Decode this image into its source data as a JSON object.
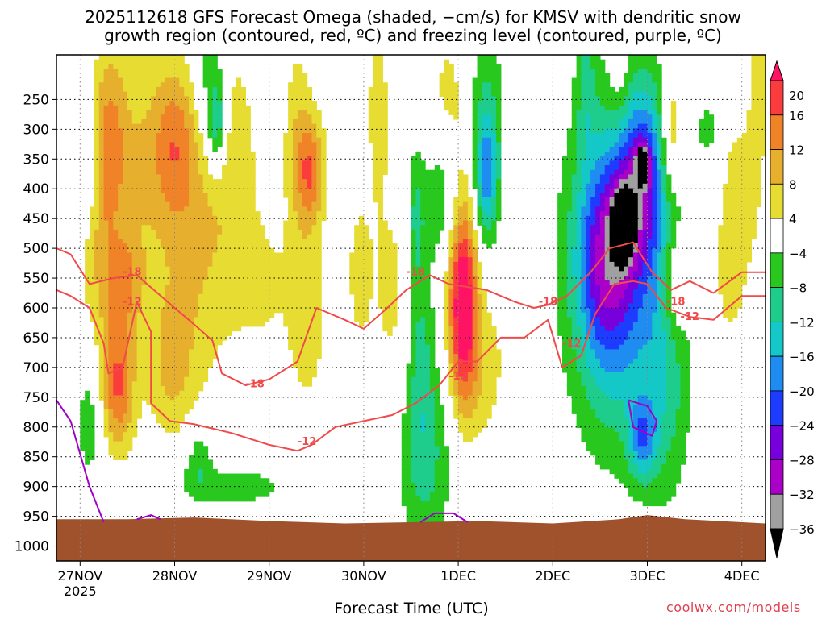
{
  "title_line1": "2025112618 GFS Forecast Omega (shaded, −cm/s) for KMSV with dendritic snow",
  "title_line2": "growth region (contoured, red, ºC) and freezing level (contoured, purple, ºC)",
  "xlabel": "Forecast Time (UTC)",
  "credit": "coolwx.com/models",
  "colors": {
    "ground": "#a0522d",
    "dgz_contour": "#f04a4a",
    "freezing_contour": "#a000c8",
    "grid": "#888888"
  },
  "colorbar": {
    "labels": [
      "20",
      "16",
      "12",
      "8",
      "4",
      "−4",
      "−8",
      "−12",
      "−16",
      "−20",
      "−24",
      "−28",
      "−32",
      "−36"
    ],
    "colors": [
      "#ff1464",
      "#fa3c3c",
      "#f08228",
      "#e6af2d",
      "#e6dc32",
      "#ffffff",
      "#28c81e",
      "#1ecc8c",
      "#14c8c8",
      "#1e8cf0",
      "#1e3cff",
      "#7800dc",
      "#aa00c8",
      "#a0a0a0",
      "#000000"
    ]
  },
  "chart_data": {
    "type": "heatmap",
    "x_ticks": [
      "27NOV",
      "28NOV",
      "29NOV",
      "30NOV",
      "1DEC",
      "2DEC",
      "3DEC",
      "4DEC"
    ],
    "x_year_label": "2025",
    "y_ticks": [
      "250",
      "300",
      "350",
      "400",
      "450",
      "500",
      "550",
      "600",
      "650",
      "700",
      "750",
      "800",
      "850",
      "900",
      "950",
      "1000"
    ],
    "y_levels": [
      250,
      300,
      350,
      400,
      450,
      500,
      550,
      600,
      650,
      700,
      750,
      800,
      850,
      900,
      950,
      1000
    ],
    "x_range_days": [
      -0.25,
      7.25
    ],
    "y_range_hpa": [
      175,
      1025
    ],
    "contour_labels": [
      {
        "text": "-18",
        "x": 0.55,
        "y": 540
      },
      {
        "text": "-12",
        "x": 0.55,
        "y": 590
      },
      {
        "text": "-18",
        "x": 1.85,
        "y": 728
      },
      {
        "text": "-12",
        "x": 2.4,
        "y": 825
      },
      {
        "text": "-18",
        "x": 3.55,
        "y": 540
      },
      {
        "text": "-12",
        "x": 4.0,
        "y": 715
      },
      {
        "text": "-18",
        "x": 4.95,
        "y": 590
      },
      {
        "text": "-12",
        "x": 5.2,
        "y": 660
      },
      {
        "text": "-18",
        "x": 6.3,
        "y": 590
      },
      {
        "text": "-12",
        "x": 6.45,
        "y": 615
      }
    ],
    "omega_blobs": [
      {
        "x": 0.3,
        "p": 320,
        "rx": 0.18,
        "rp": 160,
        "v": 10
      },
      {
        "x": 0.55,
        "p": 370,
        "rx": 0.35,
        "rp": 230,
        "v": 7
      },
      {
        "x": 0.4,
        "p": 730,
        "rx": 0.18,
        "rp": 110,
        "v": 16
      },
      {
        "x": 0.45,
        "p": 560,
        "rx": 0.2,
        "rp": 80,
        "v": 10
      },
      {
        "x": 0.15,
        "p": 520,
        "rx": 0.2,
        "rp": 200,
        "v": 5
      },
      {
        "x": 1.0,
        "p": 320,
        "rx": 0.25,
        "rp": 130,
        "v": 11
      },
      {
        "x": 1.2,
        "p": 500,
        "rx": 0.4,
        "rp": 250,
        "v": 8
      },
      {
        "x": 0.95,
        "p": 700,
        "rx": 0.25,
        "rp": 120,
        "v": 7
      },
      {
        "x": 1.6,
        "p": 330,
        "rx": 0.3,
        "rp": 180,
        "v": 6
      },
      {
        "x": 1.9,
        "p": 560,
        "rx": 0.35,
        "rp": 120,
        "v": 5
      },
      {
        "x": 2.3,
        "p": 320,
        "rx": 0.15,
        "rp": 170,
        "v": 7
      },
      {
        "x": 2.45,
        "p": 370,
        "rx": 0.15,
        "rp": 90,
        "v": 14
      },
      {
        "x": 2.4,
        "p": 620,
        "rx": 0.2,
        "rp": 150,
        "v": 7
      },
      {
        "x": 2.95,
        "p": 540,
        "rx": 0.12,
        "rp": 120,
        "v": 6
      },
      {
        "x": 3.15,
        "p": 260,
        "rx": 0.12,
        "rp": 160,
        "v": 6
      },
      {
        "x": 3.3,
        "p": 580,
        "rx": 0.25,
        "rp": 200,
        "v": 5
      },
      {
        "x": 3.85,
        "p": 300,
        "rx": 0.2,
        "rp": 160,
        "v": 6
      },
      {
        "x": 4.05,
        "p": 600,
        "rx": 0.14,
        "rp": 160,
        "v": 20
      },
      {
        "x": 4.05,
        "p": 450,
        "rx": 0.2,
        "rp": 260,
        "v": 8
      },
      {
        "x": 4.25,
        "p": 700,
        "rx": 0.25,
        "rp": 130,
        "v": 6
      },
      {
        "x": 4.6,
        "p": 360,
        "rx": 0.25,
        "rp": 250,
        "v": 5
      },
      {
        "x": 5.7,
        "p": 220,
        "rx": 0.12,
        "rp": 90,
        "v": 6
      },
      {
        "x": 6.25,
        "p": 310,
        "rx": 0.12,
        "rp": 110,
        "v": 13
      },
      {
        "x": 6.3,
        "p": 560,
        "rx": 0.15,
        "rp": 100,
        "v": 10
      },
      {
        "x": 7.0,
        "p": 380,
        "rx": 0.25,
        "rp": 220,
        "v": 6
      },
      {
        "x": 6.85,
        "p": 540,
        "rx": 0.15,
        "rp": 120,
        "v": 5
      },
      {
        "x": 7.15,
        "p": 210,
        "rx": 0.12,
        "rp": 150,
        "v": 5
      },
      {
        "x": 0.1,
        "p": 780,
        "rx": 0.15,
        "rp": 120,
        "v": -7
      },
      {
        "x": 0.1,
        "p": 360,
        "rx": 0.1,
        "rp": 120,
        "v": -6
      },
      {
        "x": 1.35,
        "p": 220,
        "rx": 0.18,
        "rp": 150,
        "v": -8
      },
      {
        "x": 1.45,
        "p": 290,
        "rx": 0.1,
        "rp": 80,
        "v": -13
      },
      {
        "x": 1.6,
        "p": 900,
        "rx": 0.7,
        "rp": 40,
        "v": -6
      },
      {
        "x": 1.25,
        "p": 850,
        "rx": 0.15,
        "rp": 60,
        "v": -7
      },
      {
        "x": 3.65,
        "p": 850,
        "rx": 0.3,
        "rp": 160,
        "v": -9
      },
      {
        "x": 3.55,
        "p": 440,
        "rx": 0.1,
        "rp": 120,
        "v": -8
      },
      {
        "x": 3.85,
        "p": 400,
        "rx": 0.2,
        "rp": 120,
        "v": -12
      },
      {
        "x": 3.6,
        "p": 660,
        "rx": 0.15,
        "rp": 180,
        "v": -8
      },
      {
        "x": 4.3,
        "p": 300,
        "rx": 0.25,
        "rp": 200,
        "v": -10
      },
      {
        "x": 4.3,
        "p": 380,
        "rx": 0.12,
        "rp": 100,
        "v": -14
      },
      {
        "x": 5.35,
        "p": 220,
        "rx": 0.1,
        "rp": 120,
        "v": -7
      },
      {
        "x": 5.8,
        "p": 450,
        "rx": 0.6,
        "rp": 280,
        "v": -12
      },
      {
        "x": 5.55,
        "p": 510,
        "rx": 0.3,
        "rp": 160,
        "v": -16
      },
      {
        "x": 5.95,
        "p": 380,
        "rx": 0.25,
        "rp": 140,
        "v": -16
      },
      {
        "x": 5.75,
        "p": 460,
        "rx": 0.12,
        "rp": 60,
        "v": -25
      },
      {
        "x": 5.95,
        "p": 360,
        "rx": 0.06,
        "rp": 30,
        "v": -27
      },
      {
        "x": 5.65,
        "p": 640,
        "rx": 0.45,
        "rp": 220,
        "v": -9
      },
      {
        "x": 6.2,
        "p": 720,
        "rx": 0.25,
        "rp": 220,
        "v": -8
      },
      {
        "x": 5.95,
        "p": 820,
        "rx": 0.15,
        "rp": 70,
        "v": -14
      },
      {
        "x": 6.65,
        "p": 300,
        "rx": 0.1,
        "rp": 40,
        "v": -6
      },
      {
        "x": 7.0,
        "p": 200,
        "rx": 0.12,
        "rp": 100,
        "v": -7
      }
    ],
    "dgz_contours": [
      {
        "label": "-18",
        "x": [
          -0.25,
          -0.1,
          0.1,
          0.35,
          0.6,
          1.0,
          1.15,
          1.4,
          1.5,
          1.75,
          2.0,
          2.3,
          2.5,
          2.8,
          3.0,
          3.25,
          3.45,
          3.7,
          3.9,
          4.3,
          4.6,
          4.8,
          4.95,
          5.15,
          5.4,
          5.6,
          5.85,
          6.05,
          6.25,
          6.45,
          6.7,
          7.0,
          7.25
        ],
        "p": [
          500,
          510,
          560,
          550,
          545,
          600,
          620,
          655,
          710,
          730,
          720,
          690,
          600,
          620,
          635,
          600,
          570,
          545,
          560,
          570,
          590,
          600,
          595,
          580,
          540,
          500,
          490,
          540,
          570,
          555,
          575,
          540,
          540
        ]
      },
      {
        "label": "-12",
        "x": [
          -0.25,
          -0.1,
          0.1,
          0.25,
          0.3,
          0.45,
          0.6,
          0.75,
          0.75,
          0.95,
          1.2,
          1.6,
          2.0,
          2.3,
          2.45,
          2.7,
          3.0,
          3.3,
          3.55,
          3.8,
          4.0,
          4.2,
          4.45,
          4.7,
          4.95,
          5.1,
          5.3,
          5.45,
          5.65,
          5.85,
          6.0,
          6.2,
          6.45,
          6.7,
          7.0,
          7.25
        ],
        "p": [
          570,
          580,
          600,
          660,
          710,
          700,
          590,
          640,
          760,
          790,
          795,
          810,
          830,
          840,
          830,
          800,
          790,
          780,
          760,
          730,
          690,
          690,
          650,
          650,
          620,
          700,
          680,
          610,
          560,
          555,
          560,
          600,
          615,
          620,
          580,
          580
        ]
      }
    ],
    "freezing_contours": [
      {
        "label": "0",
        "x": [
          -0.25,
          -0.1,
          0.1,
          0.25
        ],
        "p": [
          755,
          790,
          900,
          960
        ]
      },
      {
        "label": "0",
        "x": [
          0.6,
          0.75,
          0.85
        ],
        "p": [
          955,
          948,
          955
        ]
      },
      {
        "label": "0",
        "x": [
          3.6,
          3.75,
          3.95,
          4.1
        ],
        "p": [
          960,
          945,
          945,
          960
        ]
      },
      {
        "label": "0",
        "x": [
          5.8,
          6.0,
          6.1,
          6.05,
          5.85,
          5.8
        ],
        "p": [
          755,
          765,
          790,
          815,
          800,
          755
        ]
      }
    ],
    "ground": {
      "x": [
        -0.25,
        0.5,
        1.2,
        2.0,
        2.8,
        3.5,
        4.2,
        5.0,
        5.7,
        6.0,
        6.4,
        7.25
      ],
      "p": [
        955,
        955,
        952,
        958,
        962,
        960,
        958,
        962,
        955,
        948,
        955,
        962
      ]
    }
  }
}
